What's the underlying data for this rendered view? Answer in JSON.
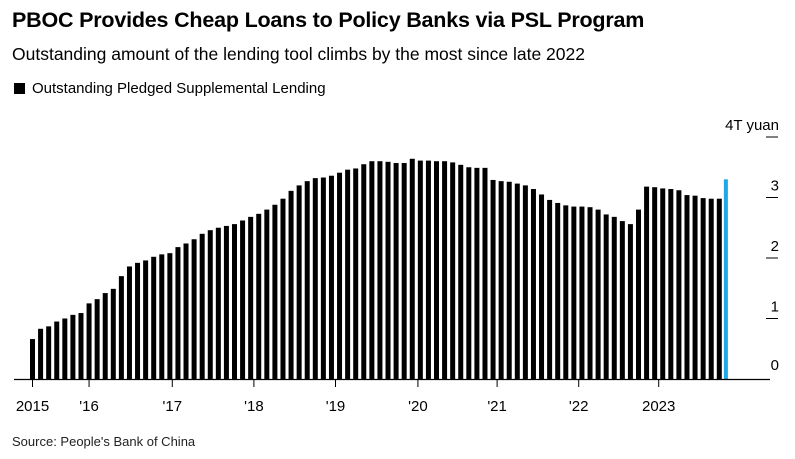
{
  "title": "PBOC Provides Cheap Loans to Policy Banks via PSL Program",
  "subtitle": "Outstanding amount of the lending tool climbs by the most since late 2022",
  "legend": {
    "label": "Outstanding Pledged Supplemental Lending"
  },
  "source": "Source: People's Bank of China",
  "chart_data": {
    "type": "bar",
    "title": "PBOC Provides Cheap Loans to Policy Banks via PSL Program",
    "subtitle": "Outstanding amount of the lending tool climbs by the most since late 2022",
    "ylabel": "",
    "y_unit": "4T yuan",
    "ylim": [
      0,
      4
    ],
    "y_ticks": [
      "0",
      "1",
      "2",
      "3",
      "4T yuan"
    ],
    "x_ticks": [
      "2015",
      "'16",
      "'17",
      "'18",
      "'19",
      "'20",
      "'21",
      "'22",
      "2023"
    ],
    "legend_position": "top-left",
    "grid": false,
    "bar_color": "#000000",
    "highlight_color": "#1fa8e8",
    "series": [
      {
        "name": "Outstanding Pledged Supplemental Lending",
        "values": [
          0.66,
          0.83,
          0.87,
          0.95,
          1.0,
          1.06,
          1.09,
          1.25,
          1.32,
          1.42,
          1.49,
          1.7,
          1.86,
          1.92,
          1.96,
          2.02,
          2.06,
          2.08,
          2.18,
          2.24,
          2.31,
          2.4,
          2.46,
          2.5,
          2.53,
          2.56,
          2.62,
          2.68,
          2.73,
          2.8,
          2.88,
          2.98,
          3.11,
          3.2,
          3.27,
          3.32,
          3.33,
          3.36,
          3.41,
          3.46,
          3.48,
          3.55,
          3.6,
          3.6,
          3.59,
          3.57,
          3.57,
          3.64,
          3.61,
          3.61,
          3.6,
          3.6,
          3.58,
          3.54,
          3.5,
          3.49,
          3.49,
          3.29,
          3.27,
          3.26,
          3.23,
          3.2,
          3.14,
          3.05,
          2.96,
          2.91,
          2.87,
          2.85,
          2.85,
          2.84,
          2.8,
          2.72,
          2.68,
          2.61,
          2.56,
          2.8,
          3.18,
          3.17,
          3.15,
          3.14,
          3.12,
          3.04,
          3.03,
          2.99,
          2.98,
          2.98,
          3.3
        ]
      }
    ]
  }
}
